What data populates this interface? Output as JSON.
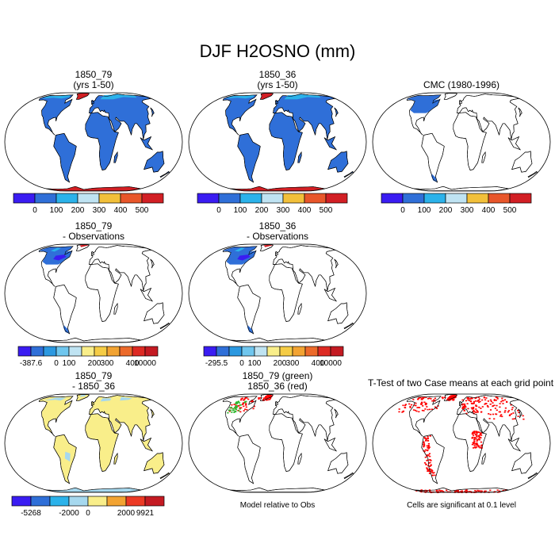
{
  "title": "DJF H2OSNO (mm)",
  "panels": {
    "p1": {
      "line1": "1850_79",
      "line2": "(yrs 1-50)"
    },
    "p2": {
      "line1": "1850_36",
      "line2": "(yrs 1-50)"
    },
    "p3": {
      "line1": "",
      "line2": "CMC (1980-1996)"
    },
    "p4": {
      "line1": "1850_79",
      "line2": "- Observations"
    },
    "p5": {
      "line1": "1850_36",
      "line2": "- Observations"
    },
    "p6": {
      "line1": "1850_79",
      "line2": "- 1850_36"
    },
    "p7": {
      "line1": "1850_79 (green)",
      "line2": "1850_36 (red)"
    },
    "p8": {
      "line1": "T-Test of two Case means at each grid point"
    }
  },
  "colorbars": {
    "abs": {
      "colors": [
        "#3a1cf2",
        "#2f6fd8",
        "#2bb2ea",
        "#bfe3f2",
        "#f2c03a",
        "#e8562a",
        "#d21f24"
      ],
      "labels": [
        "0",
        "100",
        "200",
        "300",
        "400",
        "500"
      ]
    },
    "diff79": {
      "colors": [
        "#3a1cf2",
        "#2f6fd8",
        "#2b98e0",
        "#6fc6ee",
        "#bfe3f2",
        "#f9ee8a",
        "#f5cc45",
        "#f2a332",
        "#ec6a2a",
        "#dd2a23",
        "#c41a22"
      ],
      "labels": [
        "-387.6",
        "0",
        "100",
        "200",
        "300",
        "400",
        "10000"
      ]
    },
    "diff36": {
      "colors": [
        "#3a1cf2",
        "#2f6fd8",
        "#2b98e0",
        "#6fc6ee",
        "#bfe3f2",
        "#f9ee8a",
        "#f5cc45",
        "#f2a332",
        "#ec6a2a",
        "#dd2a23",
        "#c41a22"
      ],
      "labels": [
        "-295.5",
        "0",
        "100",
        "200",
        "300",
        "400",
        "10000"
      ]
    },
    "case": {
      "colors": [
        "#3a1cf2",
        "#2f6fd8",
        "#2bb2ea",
        "#a6d8ee",
        "#f9ee8a",
        "#f2a332",
        "#ec3a24",
        "#c41a22"
      ],
      "labels": [
        "-5268",
        "-2000",
        "0",
        "2000",
        "9921"
      ]
    }
  },
  "notes": {
    "model": "Model relative to Obs",
    "ttest": "Cells are significant at 0.1 level"
  },
  "map_colors": {
    "base": "#2f6fd8",
    "high": "#d21f24",
    "light": "#2bb2ea",
    "diff_pos": "#f9ee8a",
    "diff_neg": "#a6d8ee",
    "green": "#2db62d",
    "red": "#ff0000"
  }
}
